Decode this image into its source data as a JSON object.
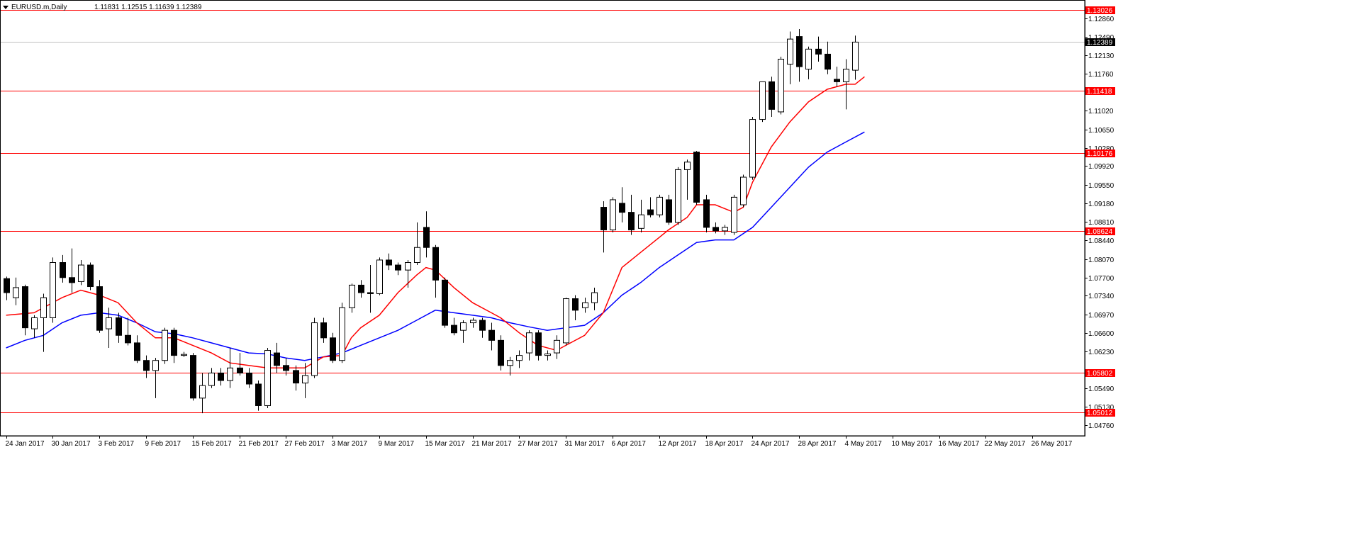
{
  "header": {
    "symbol": "EURUSD.m,Daily",
    "ohlc": "1.11831 1.12515 1.11639 1.12389"
  },
  "colors": {
    "background": "#ffffff",
    "axis": "#000000",
    "candle": "#000000",
    "level_line": "#ff0000",
    "ma_fast": "#ff0000",
    "ma_slow": "#0000ff",
    "bid_line": "#c0c0c0"
  },
  "chart_data": {
    "type": "candlestick",
    "instrument": "EURUSD.m",
    "timeframe": "Daily",
    "ylim": [
      1.0455,
      1.132
    ],
    "y_ticks": [
      "1.12860",
      "1.12490",
      "1.12130",
      "1.11760",
      "1.11020",
      "1.10650",
      "1.10280",
      "1.09920",
      "1.09550",
      "1.09180",
      "1.08810",
      "1.08440",
      "1.08070",
      "1.07700",
      "1.07340",
      "1.06970",
      "1.06600",
      "1.06230",
      "1.05490",
      "1.05130",
      "1.04760"
    ],
    "x_ticks": [
      "24 Jan 2017",
      "30 Jan 2017",
      "3 Feb 2017",
      "9 Feb 2017",
      "15 Feb 2017",
      "21 Feb 2017",
      "27 Feb 2017",
      "3 Mar 2017",
      "9 Mar 2017",
      "15 Mar 2017",
      "21 Mar 2017",
      "27 Mar 2017",
      "31 Mar 2017",
      "6 Apr 2017",
      "12 Apr 2017",
      "18 Apr 2017",
      "24 Apr 2017",
      "28 Apr 2017",
      "4 May 2017",
      "10 May 2017",
      "16 May 2017",
      "22 May 2017",
      "26 May 2017"
    ],
    "x_tick_index": [
      0,
      5,
      10,
      15,
      20,
      25,
      30,
      35,
      40,
      45,
      50,
      55,
      60,
      65,
      70,
      75,
      80,
      85,
      90,
      95,
      100,
      105,
      110
    ],
    "levels": [
      {
        "value": 1.13026,
        "label": "1.13026"
      },
      {
        "value": 1.11418,
        "label": "1.11418"
      },
      {
        "value": 1.10176,
        "label": "1.10176"
      },
      {
        "value": 1.08624,
        "label": "1.08624"
      },
      {
        "value": 1.05802,
        "label": "1.05802"
      },
      {
        "value": 1.05012,
        "label": "1.05012"
      }
    ],
    "current_price": {
      "value": 1.12389,
      "label": "1.12389"
    },
    "candles": [
      [
        1.0768,
        1.0772,
        1.0725,
        1.074
      ],
      [
        1.073,
        1.077,
        1.0715,
        1.075
      ],
      [
        1.0752,
        1.0756,
        1.0655,
        1.067
      ],
      [
        1.0668,
        1.0695,
        1.065,
        1.069
      ],
      [
        1.069,
        1.0738,
        1.0622,
        1.073
      ],
      [
        1.069,
        1.081,
        1.068,
        1.08
      ],
      [
        1.08,
        1.0815,
        1.076,
        1.077
      ],
      [
        1.077,
        1.0828,
        1.074,
        1.076
      ],
      [
        1.0762,
        1.0805,
        1.0755,
        1.0795
      ],
      [
        1.0795,
        1.08,
        1.0745,
        1.0752
      ],
      [
        1.0752,
        1.0765,
        1.066,
        1.0665
      ],
      [
        1.0668,
        1.071,
        1.063,
        1.069
      ],
      [
        1.069,
        1.07,
        1.064,
        1.0655
      ],
      [
        1.0655,
        1.069,
        1.0635,
        1.064
      ],
      [
        1.064,
        1.0655,
        1.06,
        1.0605
      ],
      [
        1.0605,
        1.0615,
        1.057,
        1.0585
      ],
      [
        1.0585,
        1.061,
        1.053,
        1.0605
      ],
      [
        1.0605,
        1.067,
        1.0598,
        1.0665
      ],
      [
        1.0665,
        1.067,
        1.06,
        1.0615
      ],
      [
        1.0615,
        1.0622,
        1.0612,
        1.0617
      ],
      [
        1.0615,
        1.062,
        1.0525,
        1.053
      ],
      [
        1.053,
        1.058,
        1.05,
        1.0555
      ],
      [
        1.0555,
        1.059,
        1.055,
        1.058
      ],
      [
        1.058,
        1.059,
        1.0555,
        1.0565
      ],
      [
        1.0565,
        1.063,
        1.055,
        1.059
      ],
      [
        1.059,
        1.062,
        1.0575,
        1.058
      ],
      [
        1.058,
        1.059,
        1.055,
        1.0558
      ],
      [
        1.0558,
        1.0565,
        1.0505,
        1.0515
      ],
      [
        1.0515,
        1.063,
        1.051,
        1.0625
      ],
      [
        1.062,
        1.064,
        1.058,
        1.0595
      ],
      [
        1.0595,
        1.061,
        1.0575,
        1.0585
      ],
      [
        1.0585,
        1.0595,
        1.0545,
        1.056
      ],
      [
        1.056,
        1.06,
        1.053,
        1.0575
      ],
      [
        1.0575,
        1.069,
        1.057,
        1.068
      ],
      [
        1.068,
        1.069,
        1.064,
        1.065
      ],
      [
        1.065,
        1.066,
        1.06,
        1.0605
      ],
      [
        1.0605,
        1.072,
        1.06,
        1.071
      ],
      [
        1.071,
        1.0758,
        1.07,
        1.0755
      ],
      [
        1.0755,
        1.0765,
        1.073,
        1.074
      ],
      [
        1.074,
        1.0795,
        1.07,
        1.0738
      ],
      [
        1.0738,
        1.081,
        1.0735,
        1.0805
      ],
      [
        1.0805,
        1.0818,
        1.0785,
        1.0795
      ],
      [
        1.0795,
        1.08,
        1.0775,
        1.0785
      ],
      [
        1.0785,
        1.0805,
        1.075,
        1.08
      ],
      [
        1.08,
        1.088,
        1.0795,
        1.083
      ],
      [
        1.087,
        1.0902,
        1.081,
        1.083
      ],
      [
        1.083,
        1.0835,
        1.073,
        1.0765
      ],
      [
        1.0765,
        1.077,
        1.067,
        1.0675
      ],
      [
        1.0675,
        1.069,
        1.0655,
        1.066
      ],
      [
        1.0665,
        1.0685,
        1.064,
        1.068
      ],
      [
        1.068,
        1.069,
        1.067,
        1.0685
      ],
      [
        1.0685,
        1.069,
        1.065,
        1.0665
      ],
      [
        1.0665,
        1.068,
        1.0625,
        1.0645
      ],
      [
        1.0645,
        1.0655,
        1.0585,
        1.0595
      ],
      [
        1.0595,
        1.0612,
        1.0575,
        1.0605
      ],
      [
        1.0605,
        1.0625,
        1.059,
        1.0615
      ],
      [
        1.062,
        1.0665,
        1.0605,
        1.066
      ],
      [
        1.066,
        1.0665,
        1.0605,
        1.0615
      ],
      [
        1.0615,
        1.0625,
        1.0605,
        1.0618
      ],
      [
        1.062,
        1.0655,
        1.0608,
        1.0645
      ],
      [
        1.064,
        1.073,
        1.0635,
        1.0728
      ],
      [
        1.0728,
        1.0735,
        1.0685,
        1.0705
      ],
      [
        1.071,
        1.073,
        1.07,
        1.072
      ],
      [
        1.072,
        1.075,
        1.0705,
        1.074
      ],
      [
        1.091,
        1.0922,
        1.082,
        1.0865
      ],
      [
        1.0865,
        1.093,
        1.086,
        1.0925
      ],
      [
        1.0918,
        1.095,
        1.088,
        1.09
      ],
      [
        1.09,
        1.0935,
        1.0855,
        1.0865
      ],
      [
        1.0868,
        1.0925,
        1.086,
        1.0895
      ],
      [
        1.0905,
        1.093,
        1.089,
        1.0895
      ],
      [
        1.0895,
        1.0935,
        1.089,
        1.093
      ],
      [
        1.0925,
        1.0935,
        1.0875,
        1.088
      ],
      [
        1.088,
        1.099,
        1.0875,
        1.0985
      ],
      [
        1.0985,
        1.1005,
        1.0925,
        1.1
      ],
      [
        1.102,
        1.1022,
        1.0915,
        1.092
      ],
      [
        1.0925,
        1.0935,
        1.086,
        1.087
      ],
      [
        1.087,
        1.088,
        1.0858,
        1.0863
      ],
      [
        1.0863,
        1.0875,
        1.0855,
        1.087
      ],
      [
        1.086,
        1.0935,
        1.0855,
        1.093
      ],
      [
        1.0915,
        1.0975,
        1.091,
        1.097
      ],
      [
        1.097,
        1.109,
        1.0965,
        1.1085
      ],
      [
        1.1085,
        1.116,
        1.108,
        1.116
      ],
      [
        1.116,
        1.117,
        1.109,
        1.1105
      ],
      [
        1.11,
        1.121,
        1.1095,
        1.1205
      ],
      [
        1.1195,
        1.126,
        1.1155,
        1.1245
      ],
      [
        1.125,
        1.1265,
        1.116,
        1.119
      ],
      [
        1.1185,
        1.123,
        1.1165,
        1.1225
      ],
      [
        1.1225,
        1.125,
        1.12,
        1.1215
      ],
      [
        1.1215,
        1.124,
        1.1175,
        1.1185
      ],
      [
        1.1165,
        1.119,
        1.115,
        1.116
      ],
      [
        1.116,
        1.1205,
        1.1105,
        1.1185
      ],
      [
        1.1183,
        1.1252,
        1.1164,
        1.1239
      ]
    ],
    "x_range": [
      -0.5,
      115.6
    ],
    "ma_fast": [
      [
        0,
        1.0695
      ],
      [
        3,
        1.07
      ],
      [
        6,
        1.073
      ],
      [
        8,
        1.0745
      ],
      [
        10,
        1.0735
      ],
      [
        12,
        1.072
      ],
      [
        14,
        1.068
      ],
      [
        16,
        1.065
      ],
      [
        18,
        1.065
      ],
      [
        20,
        1.0635
      ],
      [
        22,
        1.062
      ],
      [
        24,
        1.06
      ],
      [
        26,
        1.0595
      ],
      [
        28,
        1.059
      ],
      [
        30,
        1.059
      ],
      [
        32,
        1.059
      ],
      [
        34,
        1.0612
      ],
      [
        36,
        1.0615
      ],
      [
        37,
        1.065
      ],
      [
        38,
        1.067
      ],
      [
        40,
        1.0695
      ],
      [
        42,
        1.074
      ],
      [
        44,
        1.0775
      ],
      [
        45,
        1.079
      ],
      [
        46,
        1.0785
      ],
      [
        48,
        1.075
      ],
      [
        50,
        1.072
      ],
      [
        52,
        1.07
      ],
      [
        53,
        1.069
      ],
      [
        55,
        1.066
      ],
      [
        57,
        1.0635
      ],
      [
        59,
        1.0625
      ],
      [
        60,
        1.0635
      ],
      [
        62,
        1.0655
      ],
      [
        64,
        1.07
      ],
      [
        66,
        1.079
      ],
      [
        68,
        1.082
      ],
      [
        70,
        1.085
      ],
      [
        71,
        1.0865
      ],
      [
        73,
        1.089
      ],
      [
        74,
        1.0915
      ],
      [
        76,
        1.0915
      ],
      [
        78,
        1.09
      ],
      [
        79,
        1.091
      ],
      [
        80,
        1.096
      ],
      [
        82,
        1.103
      ],
      [
        84,
        1.108
      ],
      [
        86,
        1.112
      ],
      [
        88,
        1.1145
      ],
      [
        90,
        1.1155
      ],
      [
        91,
        1.1155
      ],
      [
        92,
        1.117
      ]
    ],
    "ma_slow": [
      [
        0,
        1.063
      ],
      [
        2,
        1.0645
      ],
      [
        4,
        1.0655
      ],
      [
        6,
        1.068
      ],
      [
        8,
        1.0695
      ],
      [
        10,
        1.07
      ],
      [
        12,
        1.0695
      ],
      [
        14,
        1.068
      ],
      [
        16,
        1.0662
      ],
      [
        18,
        1.0658
      ],
      [
        20,
        1.065
      ],
      [
        22,
        1.064
      ],
      [
        24,
        1.063
      ],
      [
        26,
        1.062
      ],
      [
        28,
        1.0618
      ],
      [
        30,
        1.061
      ],
      [
        32,
        1.0605
      ],
      [
        34,
        1.0612
      ],
      [
        36,
        1.062
      ],
      [
        38,
        1.0635
      ],
      [
        40,
        1.065
      ],
      [
        42,
        1.0665
      ],
      [
        44,
        1.0685
      ],
      [
        46,
        1.0705
      ],
      [
        48,
        1.07
      ],
      [
        50,
        1.0695
      ],
      [
        52,
        1.069
      ],
      [
        54,
        1.068
      ],
      [
        56,
        1.0672
      ],
      [
        58,
        1.0665
      ],
      [
        60,
        1.067
      ],
      [
        62,
        1.0675
      ],
      [
        64,
        1.07
      ],
      [
        66,
        1.0735
      ],
      [
        68,
        1.076
      ],
      [
        70,
        1.079
      ],
      [
        72,
        1.0815
      ],
      [
        74,
        1.084
      ],
      [
        76,
        1.0845
      ],
      [
        78,
        1.0845
      ],
      [
        80,
        1.087
      ],
      [
        82,
        1.091
      ],
      [
        84,
        1.095
      ],
      [
        86,
        1.099
      ],
      [
        88,
        1.102
      ],
      [
        90,
        1.104
      ],
      [
        92,
        1.106
      ]
    ]
  }
}
